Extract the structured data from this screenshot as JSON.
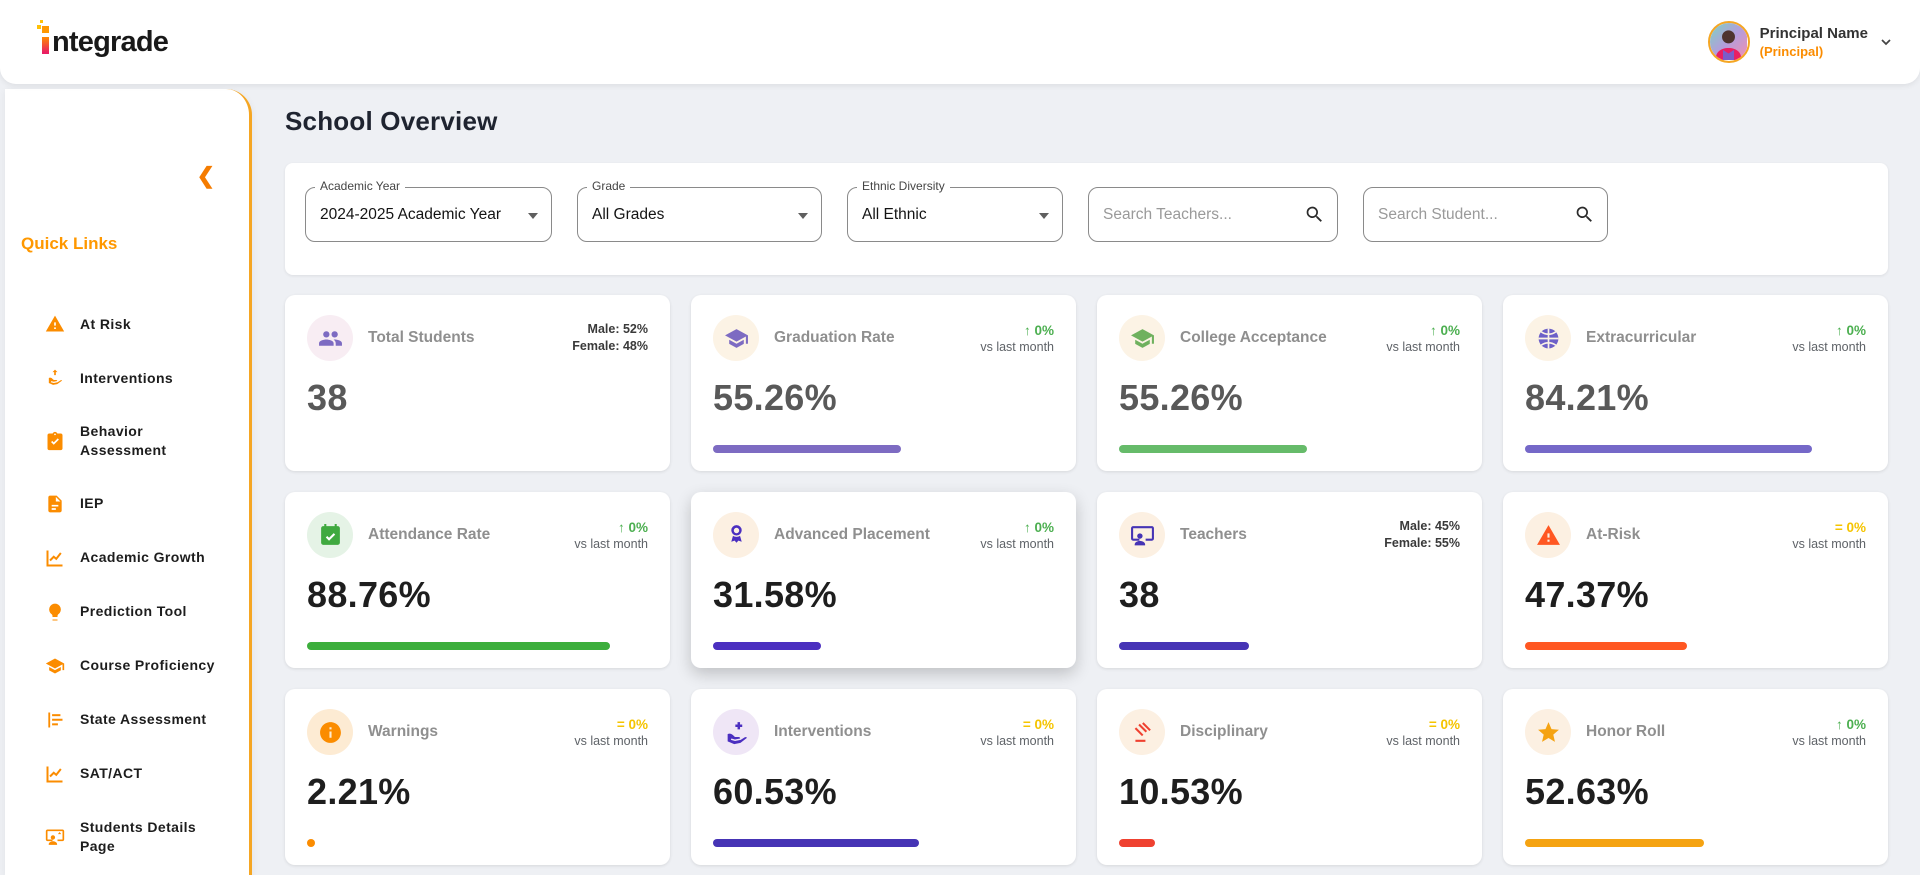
{
  "brand": {
    "name": "integrade",
    "text_after_i": "ntegrade"
  },
  "header": {
    "user_name": "Principal Name",
    "user_role": "(Principal)"
  },
  "sidebar": {
    "section_title": "Quick Links",
    "collapse_icon": "chevron-left",
    "items": [
      {
        "label": "At Risk",
        "icon": "warning-triangle-icon"
      },
      {
        "label": "Interventions",
        "icon": "caring-hands-icon"
      },
      {
        "label": "Behavior Assessment",
        "icon": "clipboard-check-icon"
      },
      {
        "label": "IEP",
        "icon": "pdf-file-icon"
      },
      {
        "label": "Academic Growth",
        "icon": "line-chart-icon"
      },
      {
        "label": "Prediction Tool",
        "icon": "lightbulb-icon"
      },
      {
        "label": "Course Proficiency",
        "icon": "graduation-cap-icon"
      },
      {
        "label": "State Assessment",
        "icon": "bar-chart-icon"
      },
      {
        "label": "SAT/ACT",
        "icon": "line-chart-icon"
      },
      {
        "label": "Students Details Page",
        "icon": "student-board-icon"
      }
    ]
  },
  "page": {
    "title": "School Overview"
  },
  "filters": {
    "selects": [
      {
        "label": "Academic Year",
        "value": "2024-2025 Academic Year"
      },
      {
        "label": "Grade",
        "value": "All Grades"
      },
      {
        "label": "Ethnic Diversity",
        "value": "All Ethnic"
      }
    ],
    "searches": [
      {
        "placeholder": "Search Teachers..."
      },
      {
        "placeholder": "Search Student..."
      }
    ]
  },
  "colors": {
    "brand_orange": "#FF9800",
    "sidebar_border": "#F5A623",
    "trend_up_green": "#4CAF50",
    "trend_flat_yellow": "#F5C400",
    "page_background": "#EEF0F4"
  },
  "cards": [
    {
      "title": "Total Students",
      "icon": "people-group-icon",
      "icon_color": "#7D6BC2",
      "icon_bg": "#F8EDF3",
      "value": "38",
      "value_color": "#595959",
      "stats": {
        "line1": "Male: 52%",
        "line2": "Female: 48%"
      },
      "bar_pct": null,
      "bar_color": null
    },
    {
      "title": "Graduation Rate",
      "icon": "graduation-cap-icon",
      "icon_color": "#7D6BC2",
      "icon_bg": "#FCF3E5",
      "value": "55.26%",
      "value_color": "#595959",
      "trend": {
        "symbol": "↑",
        "value": "0%",
        "caption": "vs last month",
        "color": "#4CAF50"
      },
      "bar_pct": 55.26,
      "bar_color": "#7D6BC2"
    },
    {
      "title": "College Acceptance",
      "icon": "graduation-cap-icon",
      "icon_color": "#6FB15E",
      "icon_bg": "#FCF3E5",
      "value": "55.26%",
      "value_color": "#595959",
      "trend": {
        "symbol": "↑",
        "value": "0%",
        "caption": "vs last month",
        "color": "#4CAF50"
      },
      "bar_pct": 55.26,
      "bar_color": "#66BB6A"
    },
    {
      "title": "Extracurricular",
      "icon": "basketball-icon",
      "icon_color": "#6D60C8",
      "icon_bg": "#FCF3E5",
      "value": "84.21%",
      "value_color": "#595959",
      "trend": {
        "symbol": "↑",
        "value": "0%",
        "caption": "vs last month",
        "color": "#4CAF50"
      },
      "bar_pct": 84.21,
      "bar_color": "#7568C8"
    },
    {
      "title": "Attendance Rate",
      "icon": "calendar-check-icon",
      "icon_color": "#3FA93F",
      "icon_bg": "#E5F3E6",
      "value": "88.76%",
      "value_color": "#1E1E1E",
      "trend": {
        "symbol": "↑",
        "value": "0%",
        "caption": "vs last month",
        "color": "#4CAF50"
      },
      "bar_pct": 88.76,
      "bar_color": "#3CAE3C"
    },
    {
      "title": "Advanced Placement",
      "icon": "medal-icon",
      "icon_color": "#4B2FC0",
      "icon_bg": "#FCF0E2",
      "value": "31.58%",
      "value_color": "#1E1E1E",
      "trend": {
        "symbol": "↑",
        "value": "0%",
        "caption": "vs last month",
        "color": "#4CAF50"
      },
      "bar_pct": 31.58,
      "bar_color": "#4B2FC0"
    },
    {
      "title": "Teachers",
      "icon": "teacher-board-icon",
      "icon_color": "#4634B5",
      "icon_bg": "#FCF0E2",
      "value": "38",
      "value_color": "#1E1E1E",
      "stats": {
        "line1": "Male: 45%",
        "line2": "Female: 55%"
      },
      "bar_pct": 38,
      "bar_color": "#4634B5"
    },
    {
      "title": "At-Risk",
      "icon": "warning-triangle-icon",
      "icon_color": "#FF5722",
      "icon_bg": "#FCF0E2",
      "value": "47.37%",
      "value_color": "#1E1E1E",
      "trend": {
        "symbol": "=",
        "value": "0%",
        "caption": "vs last month",
        "color": "#F5C400"
      },
      "bar_pct": 47.37,
      "bar_color": "#FF5722"
    },
    {
      "title": "Warnings",
      "icon": "info-circle-icon",
      "icon_color": "#FB8C00",
      "icon_bg": "#FDEBD3",
      "value": "2.21%",
      "value_color": "#1E1E1E",
      "trend": {
        "symbol": "=",
        "value": "0%",
        "caption": "vs last month",
        "color": "#F5C400"
      },
      "bar_pct": 2.21,
      "bar_color": "#FB8C00"
    },
    {
      "title": "Interventions",
      "icon": "hand-plus-icon",
      "icon_color": "#4B2FC0",
      "icon_bg": "#EFE6F6",
      "value": "60.53%",
      "value_color": "#1E1E1E",
      "trend": {
        "symbol": "=",
        "value": "0%",
        "caption": "vs last month",
        "color": "#F5C400"
      },
      "bar_pct": 60.53,
      "bar_color": "#4634B5"
    },
    {
      "title": "Disciplinary",
      "icon": "gavel-icon",
      "icon_color": "#EF4130",
      "icon_bg": "#FCF0E2",
      "value": "10.53%",
      "value_color": "#1E1E1E",
      "trend": {
        "symbol": "=",
        "value": "0%",
        "caption": "vs last month",
        "color": "#F5C400"
      },
      "bar_pct": 10.53,
      "bar_color": "#EF4130"
    },
    {
      "title": "Honor Roll",
      "icon": "star-icon",
      "icon_color": "#F5A312",
      "icon_bg": "#FCF0E2",
      "value": "52.63%",
      "value_color": "#1E1E1E",
      "trend": {
        "symbol": "↑",
        "value": "0%",
        "caption": "vs last month",
        "color": "#4CAF50"
      },
      "bar_pct": 52.63,
      "bar_color": "#F5A312"
    }
  ]
}
